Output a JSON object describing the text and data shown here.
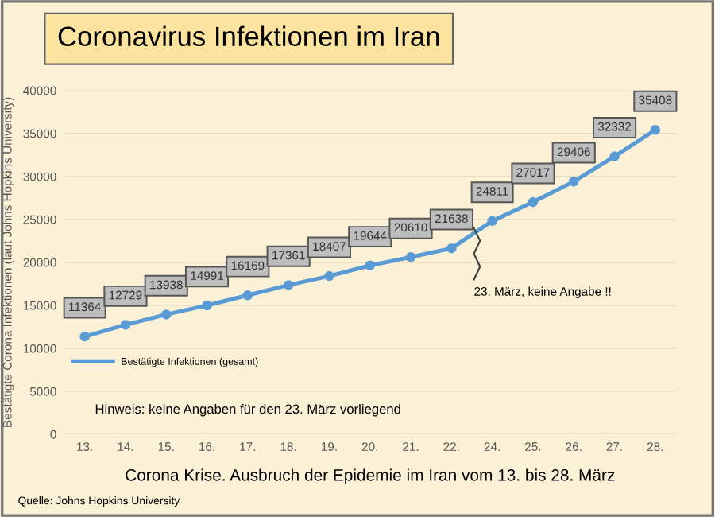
{
  "chart_data": {
    "type": "line",
    "title": "Coronavirus Infektionen im Iran",
    "xlabel": "Corona Krise. Ausbruch der Epidemie im Iran vom 13. bis 28. März",
    "ylabel": "Bestätigte Corona Infektionen (laut Johns Hopkins University)",
    "categories": [
      "13.",
      "14.",
      "15.",
      "16.",
      "17.",
      "18.",
      "19.",
      "20.",
      "21.",
      "22.",
      "24.",
      "25.",
      "26.",
      "27.",
      "28."
    ],
    "series": [
      {
        "name": "Bestätigte Infektionen (gesamt)",
        "color": "#5b9bd5",
        "values": [
          11364,
          12729,
          13938,
          14991,
          16169,
          17361,
          18407,
          19644,
          20610,
          21638,
          24811,
          27017,
          29406,
          32332,
          35408
        ]
      }
    ],
    "ylim": [
      0,
      40000
    ],
    "yticks": [
      0,
      5000,
      10000,
      15000,
      20000,
      25000,
      30000,
      35000,
      40000
    ],
    "grid": "y",
    "legend": "lower left",
    "marker": "circle",
    "line_style": "solid",
    "data_labels": true,
    "annotations": [
      "23. März, keine Angabe !!",
      "Hinweis: keine Angaben für den 23. März vorliegend",
      "Quelle: Johns Hopkins University"
    ]
  }
}
